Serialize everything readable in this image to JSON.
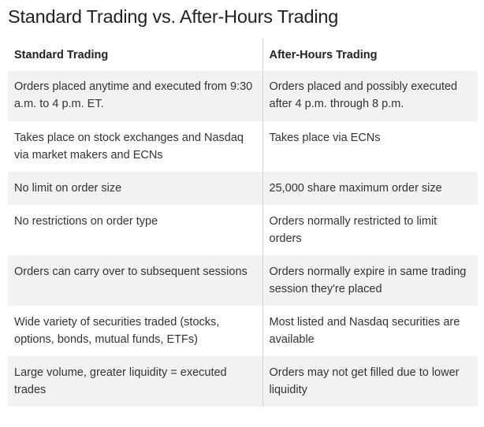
{
  "title": "Standard Trading vs. After-Hours Trading",
  "table": {
    "headers": [
      "Standard Trading",
      "After-Hours Trading"
    ],
    "rows": [
      [
        "Orders placed anytime and executed from 9:30 a.m. to 4 p.m. ET.",
        "Orders placed and possibly executed after 4 p.m. through 8 p.m."
      ],
      [
        "Takes place on stock exchanges and Nasdaq via market makers and ECNs",
        "Takes place via ECNs"
      ],
      [
        "No limit on order size",
        "25,000 share maximum order size"
      ],
      [
        "No restrictions on order type",
        "Orders normally restricted to limit orders"
      ],
      [
        "Orders can carry over to subsequent sessions",
        "Orders normally expire in same trading session they're placed"
      ],
      [
        "Wide variety of securities traded (stocks, options, bonds, mutual funds, ETFs)",
        "Most listed and Nasdaq securities are available"
      ],
      [
        "Large volume, greater liquidity = executed trades",
        "Orders may not get filled due to lower liquidity"
      ]
    ]
  }
}
